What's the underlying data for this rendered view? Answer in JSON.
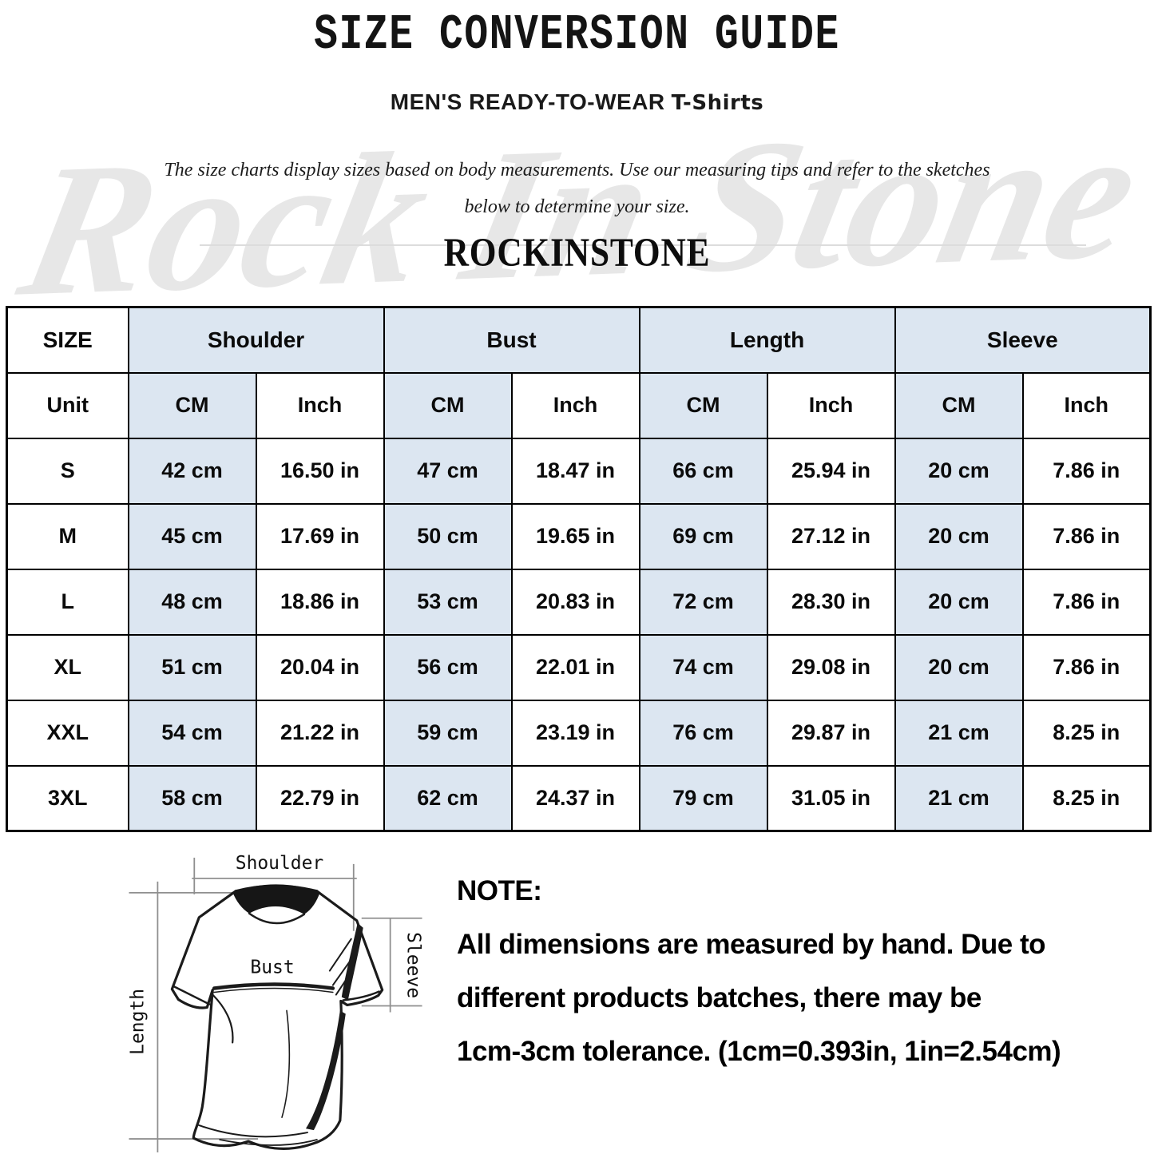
{
  "header": {
    "title": "SIZE CONVERSION GUIDE",
    "subtitle_main": "MEN'S READY-TO-WEAR",
    "subtitle_product": "T-Shirts",
    "description_line1": "The size charts display sizes based on body measurements. Use our measuring tips and refer to the sketches",
    "description_line2": "below to determine your size.",
    "brand": "ROCKINSTONE",
    "watermark": "Rock In Stone"
  },
  "table": {
    "size_header": "SIZE",
    "groups": [
      {
        "label": "Shoulder"
      },
      {
        "label": "Bust"
      },
      {
        "label": "Length"
      },
      {
        "label": "Sleeve"
      }
    ],
    "unit_label": "Unit",
    "unit_cells": [
      "CM",
      "Inch",
      "CM",
      "Inch",
      "CM",
      "Inch",
      "CM",
      "Inch"
    ],
    "rows": [
      {
        "size": "S",
        "cells": [
          "42 cm",
          "16.50 in",
          "47 cm",
          "18.47 in",
          "66 cm",
          "25.94 in",
          "20 cm",
          "7.86 in"
        ]
      },
      {
        "size": "M",
        "cells": [
          "45 cm",
          "17.69 in",
          "50 cm",
          "19.65 in",
          "69 cm",
          "27.12 in",
          "20 cm",
          "7.86 in"
        ]
      },
      {
        "size": "L",
        "cells": [
          "48 cm",
          "18.86 in",
          "53 cm",
          "20.83 in",
          "72 cm",
          "28.30 in",
          "20 cm",
          "7.86 in"
        ]
      },
      {
        "size": "XL",
        "cells": [
          "51 cm",
          "20.04 in",
          "56 cm",
          "22.01 in",
          "74 cm",
          "29.08 in",
          "20 cm",
          "7.86 in"
        ]
      },
      {
        "size": "XXL",
        "cells": [
          "54 cm",
          "21.22 in",
          "59 cm",
          "23.19 in",
          "76 cm",
          "29.87 in",
          "21 cm",
          "8.25 in"
        ]
      },
      {
        "size": "3XL",
        "cells": [
          "58 cm",
          "22.79 in",
          "62 cm",
          "24.37 in",
          "79 cm",
          "31.05 in",
          "21 cm",
          "8.25 in"
        ]
      }
    ],
    "colors": {
      "highlight": "#dce6f1",
      "border": "#000000"
    }
  },
  "diagram": {
    "labels": {
      "shoulder": "Shoulder",
      "bust": "Bust",
      "length": "Length",
      "sleeve": "Sleeve"
    }
  },
  "note": {
    "heading": "NOTE:",
    "lines": [
      "All dimensions are measured by hand. Due to",
      "different products batches, there may be",
      "1cm-3cm tolerance. (1cm=0.393in, 1in=2.54cm)"
    ]
  }
}
